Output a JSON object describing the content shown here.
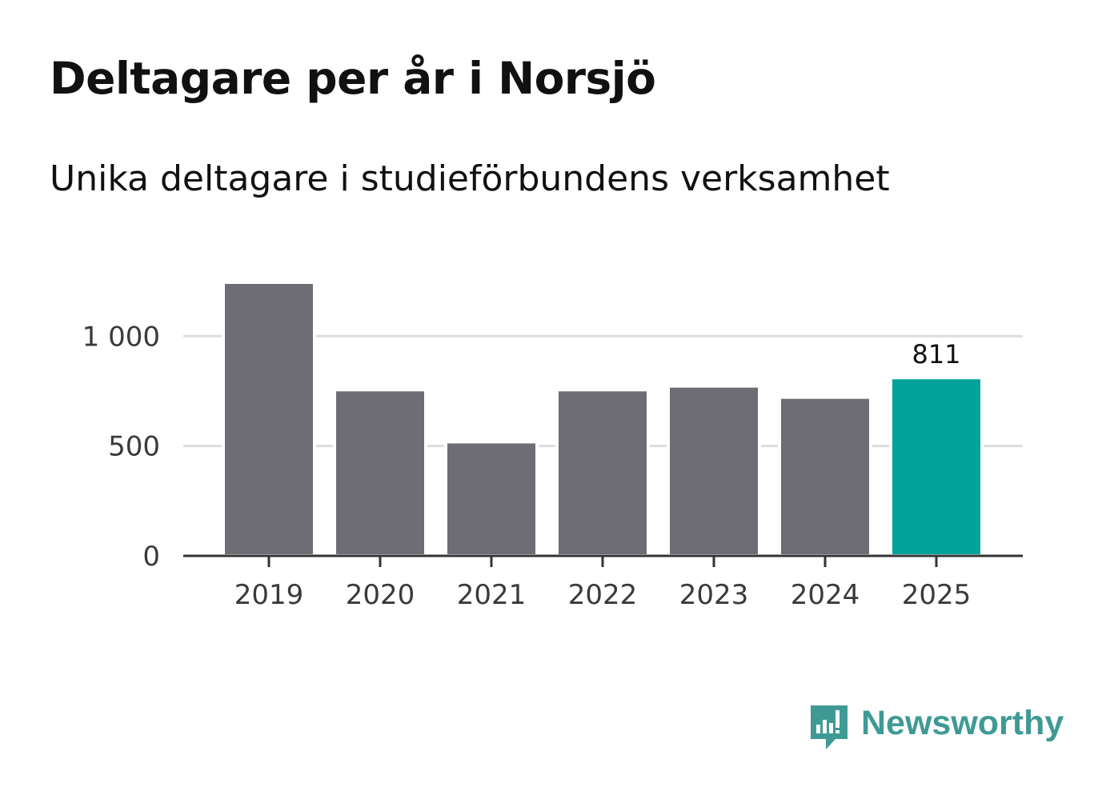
{
  "header": {
    "title": "Deltagare per år i Norsjö",
    "subtitle": "Unika deltagare i studieförbundens verksamhet"
  },
  "chart_data": {
    "type": "bar",
    "categories": [
      "2019",
      "2020",
      "2021",
      "2022",
      "2023",
      "2024",
      "2025"
    ],
    "values": [
      1245,
      756,
      519,
      756,
      773,
      722,
      811
    ],
    "ylim": [
      0,
      1245
    ],
    "yticks": [
      {
        "value": 0,
        "label": "0"
      },
      {
        "value": 500,
        "label": "500"
      },
      {
        "value": 1000,
        "label": "1 000"
      }
    ],
    "grid": true,
    "data_labels": [
      {
        "index": 6,
        "text": "811"
      }
    ],
    "highlight_index": 6,
    "colors": {
      "bar": "#6e6d74",
      "highlight": "#00a39a",
      "grid": "#dddddd",
      "axis": "#333333",
      "tick_label": "#3a3a3a"
    },
    "title": "Deltagare per år i Norsjö",
    "xlabel": "",
    "ylabel": ""
  },
  "brand": {
    "name": "Newsworthy",
    "icon": "newsworthy-logo-icon",
    "color": "#3f9a95"
  }
}
